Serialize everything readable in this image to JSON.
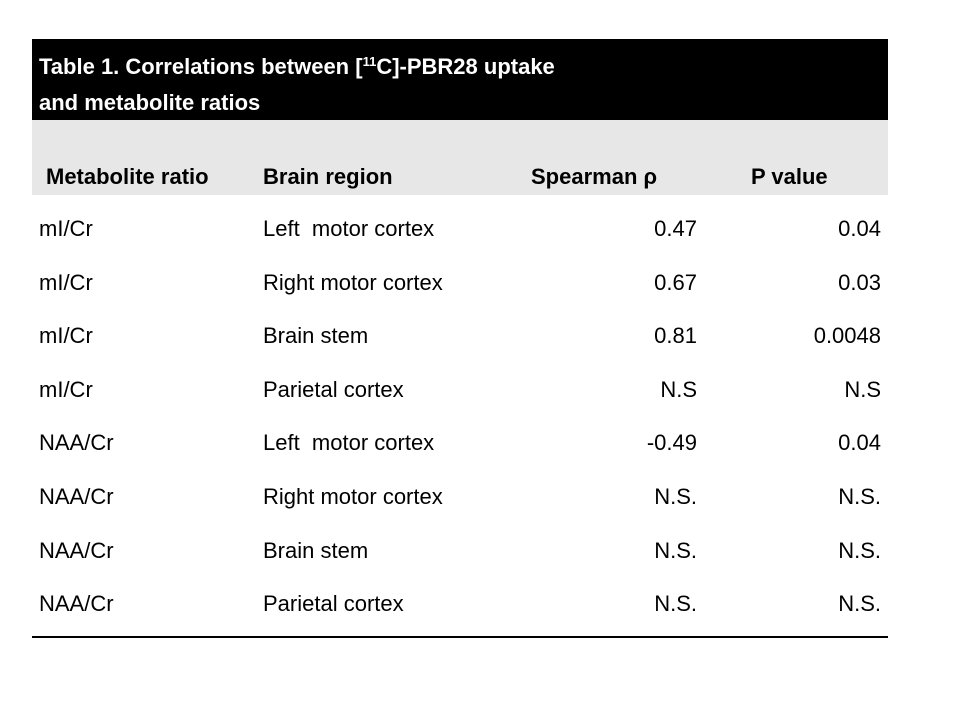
{
  "table": {
    "title_prefix": "Table 1. Correlations between [",
    "title_sup": "11",
    "title_suffix": "C]-PBR28 uptake",
    "title_line2": "and metabolite ratios",
    "headers": {
      "metabolite_ratio": "Metabolite ratio",
      "brain_region": "Brain region",
      "spearman": "Spearman ρ",
      "p_value": "P value"
    },
    "rows": [
      {
        "metabolite": "mI/Cr",
        "region": "Left  motor cortex",
        "spearman": "0.47",
        "p": "0.04"
      },
      {
        "metabolite": "mI/Cr",
        "region": "Right motor cortex",
        "spearman": "0.67",
        "p": "0.03"
      },
      {
        "metabolite": "mI/Cr",
        "region": "Brain stem",
        "spearman": "0.81",
        "p": "0.0048"
      },
      {
        "metabolite": "mI/Cr",
        "region": "Parietal cortex",
        "spearman": "N.S",
        "p": "N.S"
      },
      {
        "metabolite": "NAA/Cr",
        "region": "Left  motor cortex",
        "spearman": "-0.49",
        "p": "0.04"
      },
      {
        "metabolite": "NAA/Cr",
        "region": "Right motor cortex",
        "spearman": "N.S.",
        "p": "N.S."
      },
      {
        "metabolite": "NAA/Cr",
        "region": "Brain stem",
        "spearman": "N.S.",
        "p": "N.S."
      },
      {
        "metabolite": "NAA/Cr",
        "region": "Parietal cortex",
        "spearman": "N.S.",
        "p": "N.S."
      }
    ]
  }
}
